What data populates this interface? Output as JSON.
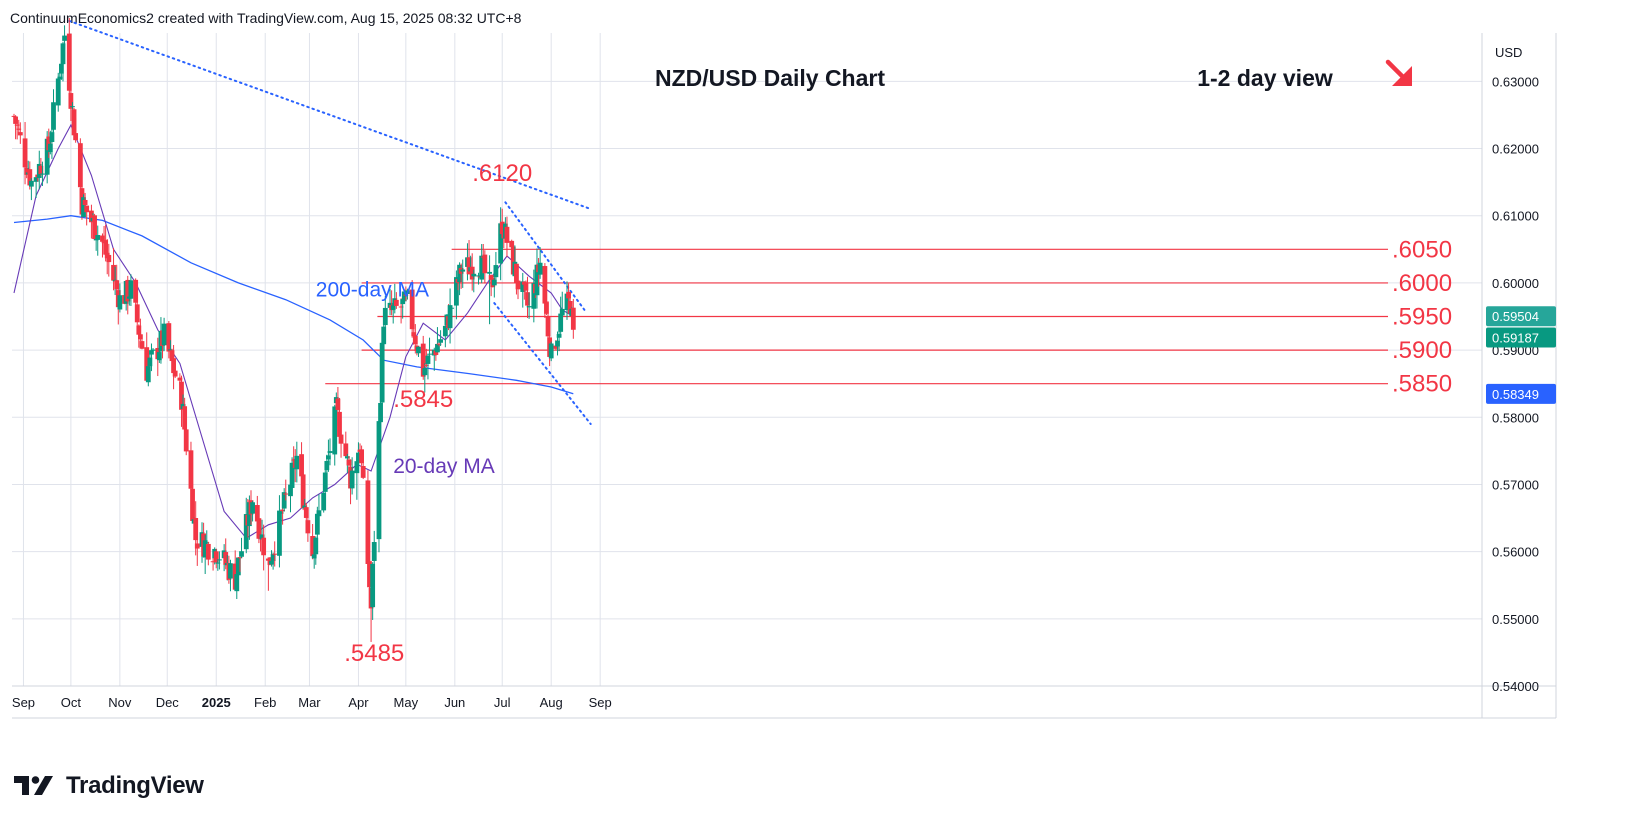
{
  "header": {
    "attribution": "ContinuumEconomics2 created with TradingView.com, Aug 15, 2025 08:32 UTC+8"
  },
  "branding": {
    "logo_text": "TradingView",
    "icon": "tradingview-logo-icon"
  },
  "colors": {
    "up": "#089981",
    "down": "#f23645",
    "ma20": "#673ab7",
    "ma200": "#2962ff",
    "level": "#f23645",
    "trend": "#2962ff",
    "grid": "#e0e3eb",
    "text": "#131722",
    "annotation": "#f23645"
  },
  "chart_data": {
    "type": "candlestick",
    "title": "NZD/USD Daily Chart",
    "subtitle": "1-2 day view",
    "direction_arrow": "down-right",
    "currency_label": "USD",
    "x_ticks": [
      "Sep",
      "Oct",
      "Nov",
      "Dec",
      "2025",
      "Feb",
      "Mar",
      "Apr",
      "May",
      "Jun",
      "Jul",
      "Aug",
      "Sep"
    ],
    "y_ticks": [
      "0.63000",
      "0.62000",
      "0.61000",
      "0.60000",
      "0.59000",
      "0.58000",
      "0.57000",
      "0.56000",
      "0.55000",
      "0.54000"
    ],
    "ylim": [
      0.54,
      0.6372
    ],
    "date_range": [
      "2024-08-26",
      "2025-08-15"
    ],
    "price_badges": [
      {
        "label": "0.59504",
        "value": 0.59504,
        "color": "#26a69a"
      },
      {
        "label": "0.59187",
        "value": 0.59187,
        "color": "#089981"
      },
      {
        "label": "0.58349",
        "value": 0.58349,
        "color": "#2962ff"
      }
    ],
    "levels": [
      {
        "label": ".6050",
        "value": 0.605,
        "from": "2025-05-30"
      },
      {
        "label": ".6000",
        "value": 0.6,
        "from": "2025-04-03"
      },
      {
        "label": ".5950",
        "value": 0.595,
        "from": "2025-04-13"
      },
      {
        "label": ".5900",
        "value": 0.59,
        "from": "2025-04-03"
      },
      {
        "label": ".5850",
        "value": 0.585,
        "from": "2025-03-11"
      }
    ],
    "annotations": [
      {
        "label": ".6120",
        "date": "2025-07-01",
        "value": 0.6152
      },
      {
        "label": ".5845",
        "date": "2025-05-12",
        "value": 0.5815
      },
      {
        "label": ".5485",
        "date": "2025-04-11",
        "value": 0.5437
      }
    ],
    "ma_labels": [
      {
        "label": "200-day MA",
        "date": "2025-03-05",
        "value": 0.598,
        "color": "#2962ff"
      },
      {
        "label": "20-day MA",
        "date": "2025-04-23",
        "value": 0.5717,
        "color": "#673ab7"
      }
    ],
    "trendlines": [
      {
        "from": [
          "2024-09-30",
          0.639
        ],
        "to": [
          "2025-08-26",
          0.611
        ]
      },
      {
        "from": [
          "2025-07-03",
          0.612
        ],
        "to": [
          "2025-08-22",
          0.596
        ]
      },
      {
        "from": [
          "2025-06-26",
          0.597
        ],
        "to": [
          "2025-08-26",
          0.579
        ]
      }
    ],
    "anchors": [
      [
        "2024-08-26",
        0.6248
      ],
      [
        "2024-09-06",
        0.615
      ],
      [
        "2024-09-17",
        0.62
      ],
      [
        "2024-09-27",
        0.637
      ],
      [
        "2024-10-08",
        0.612
      ],
      [
        "2024-10-21",
        0.606
      ],
      [
        "2024-11-01",
        0.5975
      ],
      [
        "2024-11-08",
        0.599
      ],
      [
        "2024-11-18",
        0.587
      ],
      [
        "2024-11-29",
        0.592
      ],
      [
        "2024-12-10",
        0.583
      ],
      [
        "2024-12-19",
        0.562
      ],
      [
        "2025-01-02",
        0.56
      ],
      [
        "2025-01-13",
        0.556
      ],
      [
        "2025-01-24",
        0.568
      ],
      [
        "2025-02-03",
        0.558
      ],
      [
        "2025-02-12",
        0.566
      ],
      [
        "2025-02-21",
        0.574
      ],
      [
        "2025-03-03",
        0.56
      ],
      [
        "2025-03-18",
        0.581
      ],
      [
        "2025-03-27",
        0.571
      ],
      [
        "2025-04-02",
        0.576
      ],
      [
        "2025-04-09",
        0.5515
      ],
      [
        "2025-04-17",
        0.595
      ],
      [
        "2025-05-02",
        0.597
      ],
      [
        "2025-05-12",
        0.587
      ],
      [
        "2025-05-26",
        0.593
      ],
      [
        "2025-06-05",
        0.602
      ],
      [
        "2025-06-17",
        0.603
      ],
      [
        "2025-06-24",
        0.599
      ],
      [
        "2025-07-01",
        0.609
      ],
      [
        "2025-07-11",
        0.6
      ],
      [
        "2025-07-18",
        0.596
      ],
      [
        "2025-07-25",
        0.603
      ],
      [
        "2025-08-01",
        0.589
      ],
      [
        "2025-08-08",
        0.5955
      ],
      [
        "2025-08-13",
        0.5972
      ],
      [
        "2025-08-15",
        0.5919
      ]
    ],
    "ma20_points": [
      [
        "2024-08-26",
        0.5985
      ],
      [
        "2024-09-09",
        0.613
      ],
      [
        "2024-09-23",
        0.62
      ],
      [
        "2024-10-01",
        0.6235
      ],
      [
        "2024-10-14",
        0.616
      ],
      [
        "2024-10-28",
        0.605
      ],
      [
        "2024-11-11",
        0.6
      ],
      [
        "2024-11-25",
        0.593
      ],
      [
        "2024-12-09",
        0.588
      ],
      [
        "2024-12-23",
        0.577
      ],
      [
        "2025-01-06",
        0.566
      ],
      [
        "2025-01-20",
        0.562
      ],
      [
        "2025-02-03",
        0.564
      ],
      [
        "2025-02-17",
        0.565
      ],
      [
        "2025-03-03",
        0.568
      ],
      [
        "2025-03-17",
        0.57
      ],
      [
        "2025-03-31",
        0.573
      ],
      [
        "2025-04-09",
        0.572
      ],
      [
        "2025-04-21",
        0.58
      ],
      [
        "2025-05-01",
        0.589
      ],
      [
        "2025-05-12",
        0.594
      ],
      [
        "2025-05-26",
        0.5915
      ],
      [
        "2025-06-09",
        0.5955
      ],
      [
        "2025-06-23",
        0.6005
      ],
      [
        "2025-07-04",
        0.604
      ],
      [
        "2025-07-18",
        0.601
      ],
      [
        "2025-08-01",
        0.5985
      ],
      [
        "2025-08-08",
        0.596
      ],
      [
        "2025-08-15",
        0.595
      ]
    ],
    "ma200_points": [
      [
        "2024-08-26",
        0.609
      ],
      [
        "2024-09-16",
        0.6095
      ],
      [
        "2024-10-01",
        0.61
      ],
      [
        "2024-10-21",
        0.6093
      ],
      [
        "2024-11-15",
        0.607
      ],
      [
        "2024-12-16",
        0.603
      ],
      [
        "2025-01-15",
        0.6
      ],
      [
        "2025-02-14",
        0.5975
      ],
      [
        "2025-03-14",
        0.5945
      ],
      [
        "2025-04-04",
        0.5915
      ],
      [
        "2025-04-17",
        0.5885
      ],
      [
        "2025-05-08",
        0.5875
      ],
      [
        "2025-06-10",
        0.5865
      ],
      [
        "2025-07-10",
        0.5855
      ],
      [
        "2025-08-01",
        0.5845
      ],
      [
        "2025-08-15",
        0.58349
      ]
    ],
    "candles_generated_from_anchors": true
  }
}
